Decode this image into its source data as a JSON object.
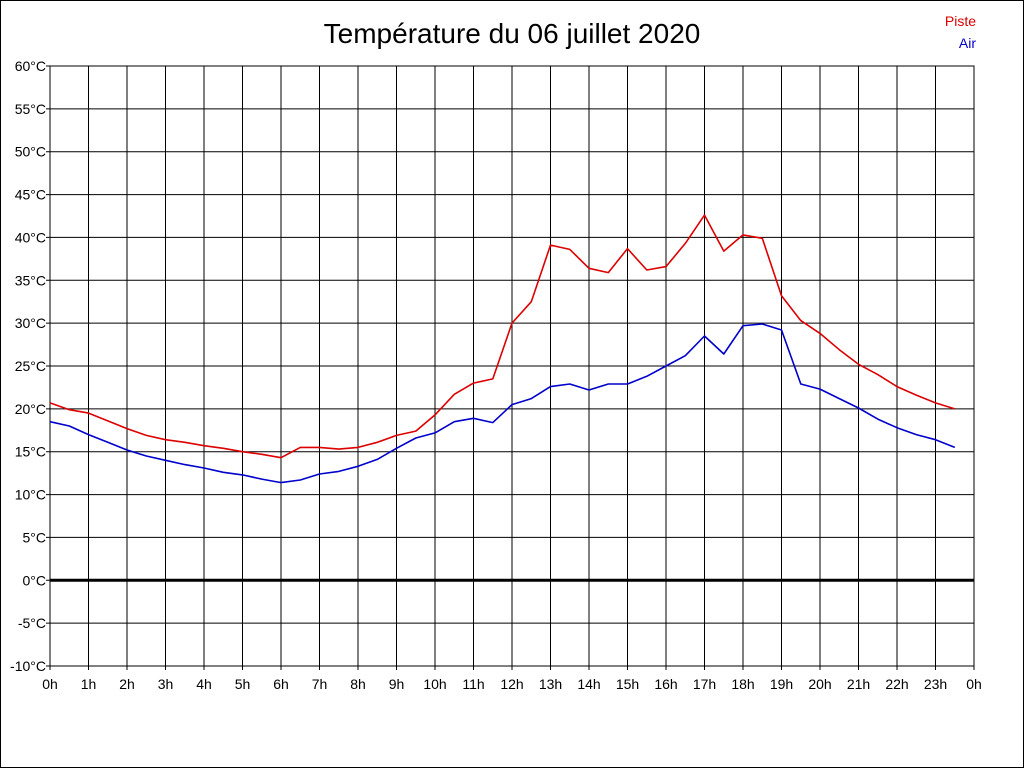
{
  "chart_data": {
    "type": "line",
    "title": "Température du 06 juillet 2020",
    "xlabel": "",
    "ylabel": "",
    "x_tick_labels": [
      "0h",
      "1h",
      "2h",
      "3h",
      "4h",
      "5h",
      "6h",
      "7h",
      "8h",
      "9h",
      "10h",
      "11h",
      "12h",
      "13h",
      "14h",
      "15h",
      "16h",
      "17h",
      "18h",
      "19h",
      "20h",
      "21h",
      "22h",
      "23h",
      "0h"
    ],
    "y_tick_labels": [
      "60°C",
      "55°C",
      "50°C",
      "45°C",
      "40°C",
      "35°C",
      "30°C",
      "25°C",
      "20°C",
      "15°C",
      "10°C",
      "5°C",
      "0°C",
      "-5°C",
      "-10°C"
    ],
    "xlim": [
      0,
      24
    ],
    "ylim": [
      -10,
      60
    ],
    "grid": true,
    "legend_position": "top-right",
    "series": [
      {
        "name": "Piste",
        "color": "#dd0000",
        "x": [
          0,
          0.5,
          1,
          1.5,
          2,
          2.5,
          3,
          3.5,
          4,
          4.5,
          5,
          5.5,
          6,
          6.5,
          7,
          7.5,
          8,
          8.5,
          9,
          9.5,
          10,
          10.5,
          11,
          11.5,
          12,
          12.5,
          13,
          13.5,
          14,
          14.5,
          15,
          15.5,
          16,
          16.5,
          17,
          17.5,
          18,
          18.5,
          19,
          19.5,
          20,
          20.5,
          21,
          21.5,
          22,
          22.5,
          23,
          23.5
        ],
        "values": [
          20.7,
          19.9,
          19.5,
          18.6,
          17.7,
          16.9,
          16.4,
          16.1,
          15.7,
          15.4,
          15.0,
          14.7,
          14.3,
          15.5,
          15.5,
          15.3,
          15.5,
          16.1,
          16.9,
          17.4,
          19.3,
          21.7,
          23.0,
          23.5,
          30.0,
          32.5,
          39.1,
          38.6,
          36.4,
          35.9,
          38.7,
          36.2,
          36.6,
          39.3,
          42.6,
          38.4,
          40.3,
          39.9,
          33.2,
          30.3,
          28.8,
          26.9,
          25.2,
          24.0,
          22.6,
          21.6,
          20.7,
          20.0
        ]
      },
      {
        "name": "Air",
        "color": "#0000cc",
        "x": [
          0,
          0.5,
          1,
          1.5,
          2,
          2.5,
          3,
          3.5,
          4,
          4.5,
          5,
          5.5,
          6,
          6.5,
          7,
          7.5,
          8,
          8.5,
          9,
          9.5,
          10,
          10.5,
          11,
          11.5,
          12,
          12.5,
          13,
          13.5,
          14,
          14.5,
          15,
          15.5,
          16,
          16.5,
          17,
          17.5,
          18,
          18.5,
          19,
          19.5,
          20,
          20.5,
          21,
          21.5,
          22,
          22.5,
          23,
          23.5
        ],
        "values": [
          18.5,
          18.0,
          17.0,
          16.1,
          15.2,
          14.5,
          14.0,
          13.5,
          13.1,
          12.6,
          12.3,
          11.8,
          11.4,
          11.7,
          12.4,
          12.7,
          13.3,
          14.1,
          15.4,
          16.6,
          17.2,
          18.5,
          18.9,
          18.4,
          20.5,
          21.2,
          22.6,
          22.9,
          22.2,
          22.9,
          22.9,
          23.8,
          25.0,
          26.2,
          28.5,
          26.4,
          29.7,
          29.9,
          29.2,
          22.9,
          22.3,
          21.2,
          20.1,
          18.8,
          17.8,
          17.0,
          16.4,
          15.5
        ]
      }
    ],
    "reference_line": {
      "y": 0,
      "color": "#000000"
    }
  }
}
